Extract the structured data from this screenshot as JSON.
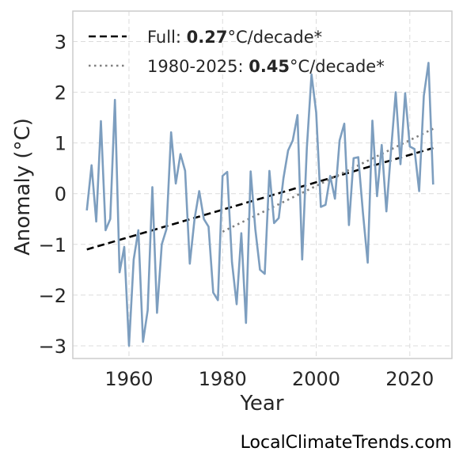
{
  "chart_data": {
    "type": "line",
    "xlabel": "Year",
    "ylabel": "Anomaly (°C)",
    "xlim": [
      1948,
      2029
    ],
    "ylim": [
      -3.25,
      3.6
    ],
    "xticks": [
      1960,
      1980,
      2000,
      2020
    ],
    "yticks": [
      -3,
      -2,
      -1,
      0,
      1,
      2,
      3
    ],
    "x_tick_labels": [
      "1960",
      "1980",
      "2000",
      "2020"
    ],
    "y_tick_labels": [
      "−3",
      "−2",
      "−1",
      "0",
      "1",
      "2",
      "3"
    ],
    "grid": true,
    "legend_position": "top-left",
    "series": [
      {
        "color": "#7d9ebf",
        "x": [
          1951,
          1952,
          1953,
          1954,
          1955,
          1956,
          1957,
          1958,
          1959,
          1960,
          1961,
          1962,
          1963,
          1964,
          1965,
          1966,
          1967,
          1968,
          1969,
          1970,
          1971,
          1972,
          1973,
          1974,
          1975,
          1976,
          1977,
          1978,
          1979,
          1980,
          1981,
          1982,
          1983,
          1984,
          1985,
          1986,
          1987,
          1988,
          1989,
          1990,
          1991,
          1992,
          1993,
          1994,
          1995,
          1996,
          1997,
          1998,
          1999,
          2000,
          2001,
          2002,
          2003,
          2004,
          2005,
          2006,
          2007,
          2008,
          2009,
          2010,
          2011,
          2012,
          2013,
          2014,
          2015,
          2016,
          2017,
          2018,
          2019,
          2020,
          2021,
          2022,
          2023,
          2024,
          2025
        ],
        "y": [
          -0.33,
          0.56,
          -0.55,
          1.43,
          -0.72,
          -0.5,
          1.85,
          -1.55,
          -1.05,
          -3.0,
          -1.3,
          -0.72,
          -2.92,
          -2.3,
          0.13,
          -2.35,
          -1.0,
          -0.7,
          1.21,
          0.2,
          0.78,
          0.45,
          -1.38,
          -0.5,
          0.05,
          -0.5,
          -0.65,
          -1.95,
          -2.1,
          0.35,
          0.43,
          -1.35,
          -2.18,
          -0.78,
          -2.55,
          0.44,
          -0.7,
          -1.5,
          -1.58,
          0.45,
          -0.58,
          -0.48,
          0.3,
          0.85,
          1.05,
          1.55,
          -1.3,
          0.9,
          2.35,
          1.6,
          -0.26,
          -0.22,
          0.35,
          -0.1,
          1.05,
          1.38,
          -0.62,
          0.7,
          0.72,
          -0.38,
          -1.36,
          1.44,
          -0.05,
          0.96,
          -0.35,
          0.85,
          2.0,
          0.58,
          1.98,
          0.93,
          0.88,
          0.05,
          1.93,
          2.58,
          0.18
        ]
      }
    ],
    "trend_lines": [
      {
        "legend_prefix": "Full: ",
        "legend_value": "0.27",
        "legend_suffix": "°C/decade*",
        "style": "dashed",
        "color": "#000000",
        "x": [
          1951,
          2025
        ],
        "y": [
          -1.1,
          0.9
        ]
      },
      {
        "legend_prefix": "1980-2025: ",
        "legend_value": "0.45",
        "legend_suffix": "°C/decade*",
        "style": "dotted",
        "color": "#808080",
        "x": [
          1980,
          2025
        ],
        "y": [
          -0.75,
          1.28
        ]
      }
    ]
  },
  "watermark": "LocalClimateTrends.com"
}
